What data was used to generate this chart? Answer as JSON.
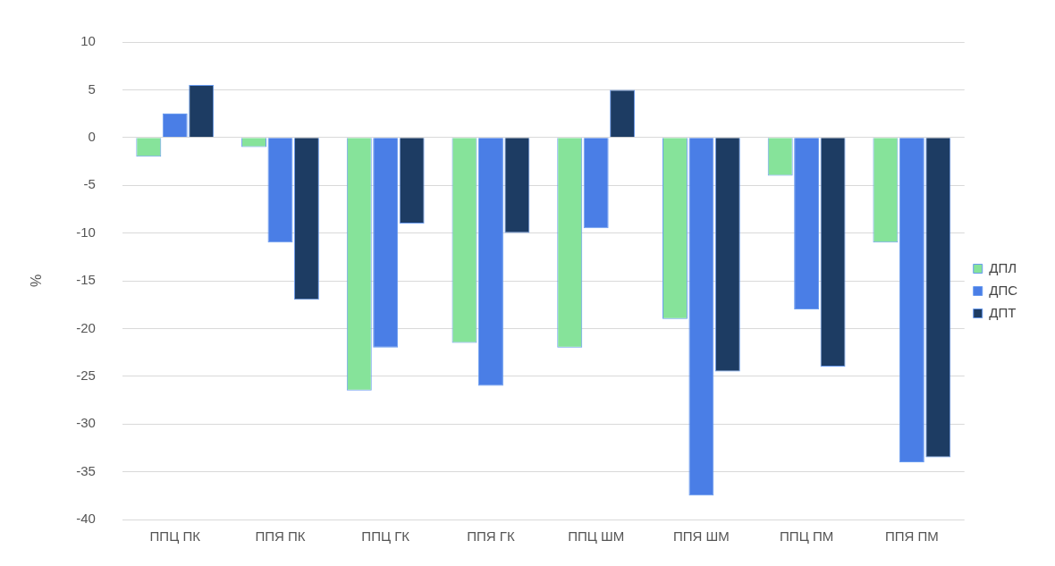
{
  "chart_data": {
    "type": "bar",
    "ylabel": "%",
    "categories": [
      "ППЦ ПК",
      "ППЯ ПК",
      "ППЦ ГК",
      "ППЯ ГК",
      "ППЦ ШМ",
      "ППЯ ШМ",
      "ППЦ ПМ",
      "ППЯ ПМ"
    ],
    "series": [
      {
        "name": "ДПЛ",
        "color": "#86e39a",
        "values": [
          -2,
          -1,
          -26.5,
          -21.5,
          -22,
          -19,
          -4,
          -11
        ]
      },
      {
        "name": "ДПС",
        "color": "#4a7ee6",
        "values": [
          2.5,
          -11,
          -22,
          -26,
          -9.5,
          -37.5,
          -18,
          -34
        ]
      },
      {
        "name": "ДПТ",
        "color": "#1d3c63",
        "values": [
          5.5,
          -17,
          -9,
          -10,
          5,
          -24.5,
          -24,
          -33.5
        ]
      }
    ],
    "ylim": [
      -40,
      10
    ],
    "yticks": [
      -40,
      -35,
      -30,
      -25,
      -20,
      -15,
      -10,
      -5,
      0,
      5,
      10
    ],
    "grid": "y",
    "legend": "right"
  }
}
